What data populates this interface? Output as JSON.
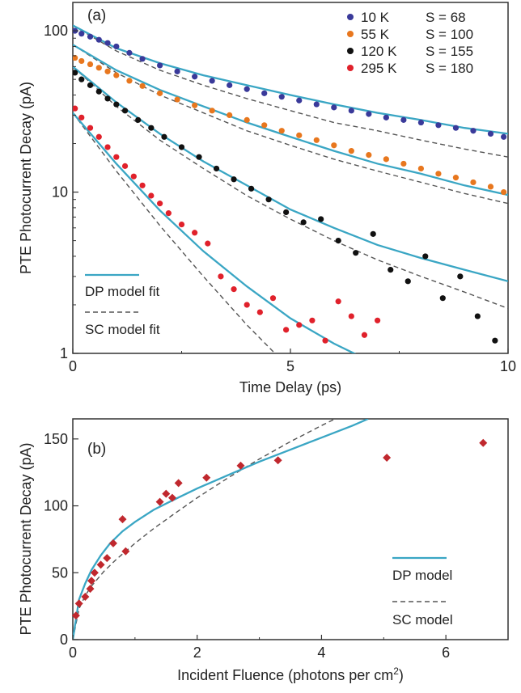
{
  "chart_data": [
    {
      "panel": "(a)",
      "type": "scatter",
      "xlabel": "Time Delay (ps)",
      "ylabel": "PTE Photocurrent Decay (pA)",
      "xlim": [
        0,
        10
      ],
      "ylim": [
        1,
        150
      ],
      "yscale": "log",
      "x_ticks": [
        "0",
        "5",
        "10"
      ],
      "y_ticks": [
        "1",
        "10",
        "100"
      ],
      "legend_position": "top-right",
      "series": [
        {
          "name": "10 K",
          "S_label": "S = 68",
          "color": "#3a3a9a",
          "x": [
            0.05,
            0.2,
            0.4,
            0.6,
            0.8,
            1.0,
            1.3,
            1.6,
            2.0,
            2.4,
            2.8,
            3.2,
            3.6,
            4.0,
            4.4,
            4.8,
            5.2,
            5.6,
            6.0,
            6.4,
            6.8,
            7.2,
            7.6,
            8.0,
            8.4,
            8.8,
            9.2,
            9.6,
            9.9
          ],
          "y": [
            100,
            96,
            92,
            88,
            84,
            80,
            73,
            67,
            61,
            56,
            52,
            49,
            46,
            43.5,
            41,
            39,
            37,
            35,
            33.5,
            32,
            30.5,
            29,
            28,
            27,
            26,
            25,
            24,
            23,
            22
          ]
        },
        {
          "name": "55 K",
          "S_label": "S = 100",
          "color": "#e8771e",
          "x": [
            0.05,
            0.2,
            0.4,
            0.6,
            0.8,
            1.0,
            1.3,
            1.6,
            2.0,
            2.4,
            2.8,
            3.2,
            3.6,
            4.0,
            4.4,
            4.8,
            5.2,
            5.6,
            6.0,
            6.4,
            6.8,
            7.2,
            7.6,
            8.0,
            8.4,
            8.8,
            9.2,
            9.6,
            9.9
          ],
          "y": [
            68,
            65,
            62,
            59,
            56,
            53,
            49,
            45.5,
            41,
            37.5,
            34.5,
            32,
            30,
            28,
            26,
            24,
            22.5,
            21,
            19.5,
            18,
            17,
            16,
            15,
            14,
            13,
            12.3,
            11.5,
            10.8,
            10
          ]
        },
        {
          "name": "120 K",
          "S_label": "S = 155",
          "color": "#111111",
          "x": [
            0.05,
            0.2,
            0.4,
            0.6,
            0.8,
            1.0,
            1.2,
            1.5,
            1.8,
            2.1,
            2.5,
            2.9,
            3.3,
            3.7,
            4.1,
            4.5,
            4.9,
            5.3,
            5.7,
            6.1,
            6.5,
            6.9,
            7.3,
            7.7,
            8.1,
            8.5,
            8.9,
            9.3,
            9.7
          ],
          "y": [
            55,
            50,
            46,
            42,
            38,
            35,
            32,
            28,
            25,
            22,
            19,
            16.5,
            14,
            12,
            10.5,
            9,
            7.5,
            6.5,
            6.8,
            5,
            4.2,
            5.5,
            3.3,
            2.8,
            4,
            2.2,
            3,
            1.7,
            1.2
          ]
        },
        {
          "name": "295 K",
          "S_label": "S = 180",
          "color": "#e0212b",
          "x": [
            0.05,
            0.2,
            0.4,
            0.6,
            0.8,
            1.0,
            1.2,
            1.4,
            1.6,
            1.8,
            2.0,
            2.2,
            2.5,
            2.8,
            3.1,
            3.4,
            3.7,
            4.0,
            4.3,
            4.6,
            4.9,
            5.2,
            5.5,
            5.8,
            6.1,
            6.4,
            6.7,
            7.0
          ],
          "y": [
            33,
            29,
            25,
            22,
            19,
            16.5,
            14.5,
            12.5,
            11,
            9.5,
            8.5,
            7.4,
            6.3,
            5.6,
            4.8,
            3,
            2.5,
            2,
            1.8,
            2.2,
            1.4,
            1.5,
            1.6,
            1.2,
            2.1,
            1.7,
            1.3,
            1.6
          ]
        }
      ],
      "fits": {
        "DP": {
          "x": [
            0,
            1,
            2,
            3,
            4,
            5,
            6,
            7,
            8,
            9,
            10
          ],
          "10 K": [
            108,
            78,
            63,
            53,
            46,
            40,
            35,
            31,
            28,
            25,
            23
          ],
          "55 K": [
            82,
            57,
            43,
            34,
            27,
            22,
            18,
            15,
            13,
            11,
            9.6
          ],
          "120 K": [
            60,
            36,
            23,
            15.5,
            11,
            7.8,
            6,
            4.7,
            3.9,
            3.3,
            2.8
          ],
          "295 K": [
            31,
            15,
            7.7,
            4.3,
            2.6,
            1.65,
            1.15,
            0.85
          ]
        },
        "SC": {
          "x": [
            0,
            1,
            2,
            3,
            4,
            5,
            6,
            7,
            8,
            9,
            10
          ],
          "10 K": [
            108,
            75,
            57,
            46,
            38,
            32,
            27,
            24,
            21,
            18.5,
            16.5
          ],
          "55 K": [
            82,
            55,
            40,
            31,
            24,
            19.5,
            16,
            13.5,
            11.5,
            9.8,
            8.5
          ],
          "120 K": [
            60,
            34,
            21,
            14,
            9.5,
            6.8,
            5,
            3.8,
            3,
            2.4,
            1.9
          ],
          "295 K": [
            31,
            13.5,
            6.2,
            3,
            1.5,
            0.8
          ]
        }
      },
      "fit_legend": [
        "DP model fit",
        "SC model fit"
      ]
    },
    {
      "panel": "(b)",
      "type": "scatter",
      "xlabel": "Incident Fluence (photons per cm",
      "xlabel_sup": "2",
      "xlabel_end": ")",
      "ylabel": "PTE Photocurrent Decay (pA)",
      "xlim": [
        0,
        7
      ],
      "ylim": [
        0,
        165
      ],
      "x_ticks": [
        "0",
        "2",
        "4",
        "6"
      ],
      "y_ticks": [
        "0",
        "50",
        "100",
        "150"
      ],
      "series": [
        {
          "name": "data",
          "color": "#c0282e",
          "x": [
            0.05,
            0.1,
            0.2,
            0.28,
            0.3,
            0.35,
            0.45,
            0.55,
            0.65,
            0.8,
            0.85,
            1.4,
            1.5,
            1.6,
            1.7,
            2.15,
            2.7,
            3.3,
            5.05,
            6.6
          ],
          "y": [
            18,
            27,
            32,
            38,
            44,
            50,
            56,
            61,
            72,
            90,
            66,
            103,
            109,
            106,
            117,
            121,
            130,
            134,
            136,
            147
          ]
        }
      ],
      "fits": {
        "DP": {
          "x": [
            0,
            0.1,
            0.2,
            0.3,
            0.45,
            0.6,
            0.8,
            1.0,
            1.3,
            1.6,
            2.0,
            2.5,
            3.0,
            3.5,
            4.0,
            4.5,
            4.75
          ],
          "y": [
            0,
            30,
            42,
            52,
            63,
            72,
            81,
            88,
            97,
            104,
            113,
            123,
            133,
            142,
            151,
            160,
            165
          ]
        },
        "SC": {
          "x": [
            0,
            0.1,
            0.2,
            0.3,
            0.5,
            0.7,
            1.0,
            1.3,
            1.6,
            2.0,
            2.5,
            3.0,
            3.5,
            4.0,
            4.35
          ],
          "y": [
            0,
            23,
            33,
            40,
            51,
            60,
            72,
            83,
            93,
            106,
            121,
            135,
            148,
            160,
            168
          ]
        }
      },
      "fit_legend": [
        "DP model",
        "SC model"
      ]
    }
  ],
  "colors": {
    "fit_line": "#3aa6c4",
    "sc_line": "#555555"
  }
}
